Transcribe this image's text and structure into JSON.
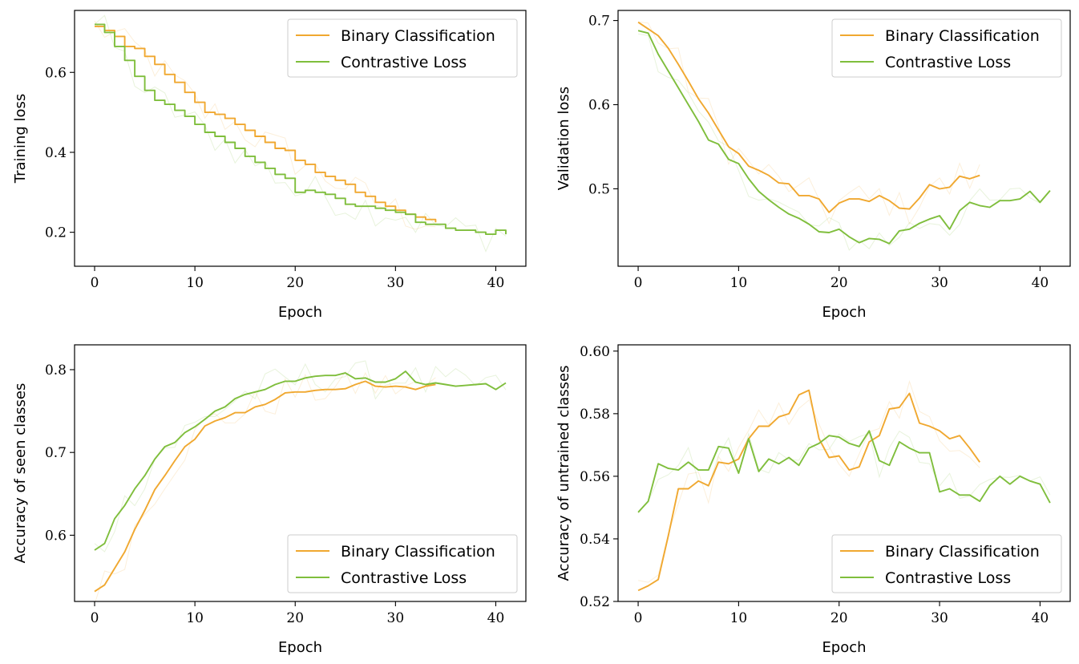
{
  "colors": {
    "binary": "#f0a830",
    "contrastive": "#7fbe3c"
  },
  "chart_data": [
    {
      "id": "training-loss",
      "type": "line",
      "title": "",
      "xlabel": "Epoch",
      "ylabel": "Training loss",
      "xlim": [
        -2,
        43
      ],
      "ylim": [
        0.115,
        0.755
      ],
      "xticks": [
        0,
        10,
        20,
        30,
        40
      ],
      "yticks": [
        0.2,
        0.4,
        0.6
      ],
      "ytick_labels": [
        "0.2",
        "0.4",
        "0.6"
      ],
      "step": true,
      "legend": "upper right",
      "series": [
        {
          "name": "Binary Classification",
          "color": "#f0a830",
          "x": [
            0,
            1,
            2,
            3,
            4,
            5,
            6,
            7,
            8,
            9,
            10,
            11,
            12,
            13,
            14,
            15,
            16,
            17,
            18,
            19,
            20,
            21,
            22,
            23,
            24,
            25,
            26,
            27,
            28,
            29,
            30,
            31,
            32,
            33,
            34
          ],
          "y": [
            0.715,
            0.705,
            0.69,
            0.665,
            0.66,
            0.64,
            0.62,
            0.595,
            0.575,
            0.55,
            0.525,
            0.5,
            0.495,
            0.485,
            0.47,
            0.455,
            0.44,
            0.425,
            0.41,
            0.405,
            0.38,
            0.37,
            0.35,
            0.34,
            0.33,
            0.32,
            0.3,
            0.29,
            0.275,
            0.265,
            0.255,
            0.245,
            0.238,
            0.232,
            0.225
          ]
        },
        {
          "name": "Contrastive Loss",
          "color": "#7fbe3c",
          "x": [
            0,
            1,
            2,
            3,
            4,
            5,
            6,
            7,
            8,
            9,
            10,
            11,
            12,
            13,
            14,
            15,
            16,
            17,
            18,
            19,
            20,
            21,
            22,
            23,
            24,
            25,
            26,
            27,
            28,
            29,
            30,
            31,
            32,
            33,
            34,
            35,
            36,
            37,
            38,
            39,
            40,
            41
          ],
          "y": [
            0.72,
            0.7,
            0.665,
            0.63,
            0.59,
            0.555,
            0.53,
            0.52,
            0.505,
            0.49,
            0.47,
            0.45,
            0.44,
            0.425,
            0.41,
            0.39,
            0.375,
            0.36,
            0.345,
            0.335,
            0.3,
            0.305,
            0.3,
            0.295,
            0.285,
            0.27,
            0.265,
            0.265,
            0.26,
            0.255,
            0.25,
            0.245,
            0.225,
            0.22,
            0.22,
            0.21,
            0.205,
            0.205,
            0.2,
            0.195,
            0.205,
            0.195
          ]
        }
      ]
    },
    {
      "id": "validation-loss",
      "type": "line",
      "title": "",
      "xlabel": "Epoch",
      "ylabel": "Validation loss",
      "xlim": [
        -2,
        43
      ],
      "ylim": [
        0.408,
        0.712
      ],
      "xticks": [
        0,
        10,
        20,
        30,
        40
      ],
      "yticks": [
        0.5,
        0.6,
        0.7
      ],
      "ytick_labels": [
        "0.5",
        "0.6",
        "0.7"
      ],
      "step": false,
      "legend": "upper right",
      "series": [
        {
          "name": "Binary Classification",
          "color": "#f0a830",
          "x": [
            0,
            1,
            2,
            3,
            4,
            5,
            6,
            7,
            8,
            9,
            10,
            11,
            12,
            13,
            14,
            15,
            16,
            17,
            18,
            19,
            20,
            21,
            22,
            23,
            24,
            25,
            26,
            27,
            28,
            29,
            30,
            31,
            32,
            33,
            34
          ],
          "y": [
            0.698,
            0.69,
            0.682,
            0.667,
            0.648,
            0.628,
            0.607,
            0.59,
            0.57,
            0.55,
            0.542,
            0.527,
            0.522,
            0.516,
            0.507,
            0.506,
            0.492,
            0.492,
            0.488,
            0.472,
            0.483,
            0.488,
            0.488,
            0.485,
            0.492,
            0.486,
            0.477,
            0.476,
            0.489,
            0.505,
            0.5,
            0.502,
            0.515,
            0.512,
            0.516
          ]
        },
        {
          "name": "Contrastive Loss",
          "color": "#7fbe3c",
          "x": [
            0,
            1,
            2,
            3,
            4,
            5,
            6,
            7,
            8,
            9,
            10,
            11,
            12,
            13,
            14,
            15,
            16,
            17,
            18,
            19,
            20,
            21,
            22,
            23,
            24,
            25,
            26,
            27,
            28,
            29,
            30,
            31,
            32,
            33,
            34,
            35,
            36,
            37,
            38,
            39,
            40,
            41
          ],
          "y": [
            0.688,
            0.685,
            0.66,
            0.64,
            0.62,
            0.6,
            0.58,
            0.558,
            0.553,
            0.535,
            0.53,
            0.512,
            0.497,
            0.487,
            0.478,
            0.47,
            0.465,
            0.458,
            0.449,
            0.448,
            0.452,
            0.443,
            0.436,
            0.441,
            0.44,
            0.435,
            0.45,
            0.452,
            0.459,
            0.464,
            0.468,
            0.452,
            0.474,
            0.484,
            0.48,
            0.478,
            0.486,
            0.486,
            0.488,
            0.497,
            0.484,
            0.498
          ]
        }
      ]
    },
    {
      "id": "seen-accuracy",
      "type": "line",
      "title": "",
      "xlabel": "Epoch",
      "ylabel": "Accuracy of seen classes",
      "xlim": [
        -2,
        43
      ],
      "ylim": [
        0.52,
        0.83
      ],
      "xticks": [
        0,
        10,
        20,
        30,
        40
      ],
      "yticks": [
        0.6,
        0.7,
        0.8
      ],
      "ytick_labels": [
        "0.6",
        "0.7",
        "0.8"
      ],
      "step": false,
      "legend": "lower right",
      "series": [
        {
          "name": "Binary Classification",
          "color": "#f0a830",
          "x": [
            0,
            1,
            2,
            3,
            4,
            5,
            6,
            7,
            8,
            9,
            10,
            11,
            12,
            13,
            14,
            15,
            16,
            17,
            18,
            19,
            20,
            21,
            22,
            23,
            24,
            25,
            26,
            27,
            28,
            29,
            30,
            31,
            32,
            33,
            34
          ],
          "y": [
            0.532,
            0.54,
            0.56,
            0.58,
            0.607,
            0.63,
            0.655,
            0.672,
            0.69,
            0.707,
            0.716,
            0.732,
            0.738,
            0.742,
            0.748,
            0.748,
            0.755,
            0.758,
            0.764,
            0.772,
            0.773,
            0.773,
            0.775,
            0.776,
            0.776,
            0.777,
            0.782,
            0.786,
            0.78,
            0.779,
            0.78,
            0.779,
            0.776,
            0.78,
            0.782
          ]
        },
        {
          "name": "Contrastive Loss",
          "color": "#7fbe3c",
          "x": [
            0,
            1,
            2,
            3,
            4,
            5,
            6,
            7,
            8,
            9,
            10,
            11,
            12,
            13,
            14,
            15,
            16,
            17,
            18,
            19,
            20,
            21,
            22,
            23,
            24,
            25,
            26,
            27,
            28,
            29,
            30,
            31,
            32,
            33,
            34,
            35,
            36,
            37,
            38,
            39,
            40,
            41
          ],
          "y": [
            0.582,
            0.59,
            0.62,
            0.636,
            0.656,
            0.672,
            0.692,
            0.707,
            0.712,
            0.724,
            0.731,
            0.74,
            0.75,
            0.755,
            0.765,
            0.77,
            0.773,
            0.776,
            0.782,
            0.786,
            0.786,
            0.79,
            0.792,
            0.793,
            0.793,
            0.796,
            0.789,
            0.79,
            0.785,
            0.785,
            0.789,
            0.798,
            0.785,
            0.782,
            0.784,
            0.782,
            0.78,
            0.781,
            0.782,
            0.783,
            0.776,
            0.784
          ]
        }
      ]
    },
    {
      "id": "untrained-accuracy",
      "type": "line",
      "title": "",
      "xlabel": "Epoch",
      "ylabel": "Accuracy of untrained classes",
      "xlim": [
        -2,
        43
      ],
      "ylim": [
        0.52,
        0.602
      ],
      "xticks": [
        0,
        10,
        20,
        30,
        40
      ],
      "yticks": [
        0.52,
        0.54,
        0.56,
        0.58,
        0.6
      ],
      "ytick_labels": [
        "0.52",
        "0.54",
        "0.56",
        "0.58",
        "0.60"
      ],
      "step": false,
      "legend": "lower right",
      "series": [
        {
          "name": "Binary Classification",
          "color": "#f0a830",
          "x": [
            0,
            1,
            2,
            3,
            4,
            5,
            6,
            7,
            8,
            9,
            10,
            11,
            12,
            13,
            14,
            15,
            16,
            17,
            18,
            19,
            20,
            21,
            22,
            23,
            24,
            25,
            26,
            27,
            28,
            29,
            30,
            31,
            32,
            33,
            34
          ],
          "y": [
            0.5235,
            0.525,
            0.527,
            0.541,
            0.556,
            0.556,
            0.5585,
            0.557,
            0.5645,
            0.564,
            0.5655,
            0.572,
            0.576,
            0.576,
            0.579,
            0.58,
            0.586,
            0.5875,
            0.572,
            0.566,
            0.5665,
            0.562,
            0.563,
            0.571,
            0.573,
            0.5815,
            0.582,
            0.5865,
            0.577,
            0.576,
            0.5745,
            0.572,
            0.573,
            0.569,
            0.5645
          ]
        },
        {
          "name": "Contrastive Loss",
          "color": "#7fbe3c",
          "x": [
            0,
            1,
            2,
            3,
            4,
            5,
            6,
            7,
            8,
            9,
            10,
            11,
            12,
            13,
            14,
            15,
            16,
            17,
            18,
            19,
            20,
            21,
            22,
            23,
            24,
            25,
            26,
            27,
            28,
            29,
            30,
            31,
            32,
            33,
            34,
            35,
            36,
            37,
            38,
            39,
            40,
            41
          ],
          "y": [
            0.5485,
            0.552,
            0.564,
            0.5625,
            0.562,
            0.5645,
            0.562,
            0.562,
            0.5695,
            0.569,
            0.561,
            0.572,
            0.5615,
            0.5655,
            0.564,
            0.566,
            0.5635,
            0.569,
            0.5705,
            0.573,
            0.5725,
            0.5705,
            0.5695,
            0.5745,
            0.565,
            0.5635,
            0.571,
            0.569,
            0.5675,
            0.5675,
            0.555,
            0.556,
            0.554,
            0.554,
            0.552,
            0.557,
            0.56,
            0.5575,
            0.56,
            0.5585,
            0.5575,
            0.5515
          ]
        }
      ]
    }
  ]
}
